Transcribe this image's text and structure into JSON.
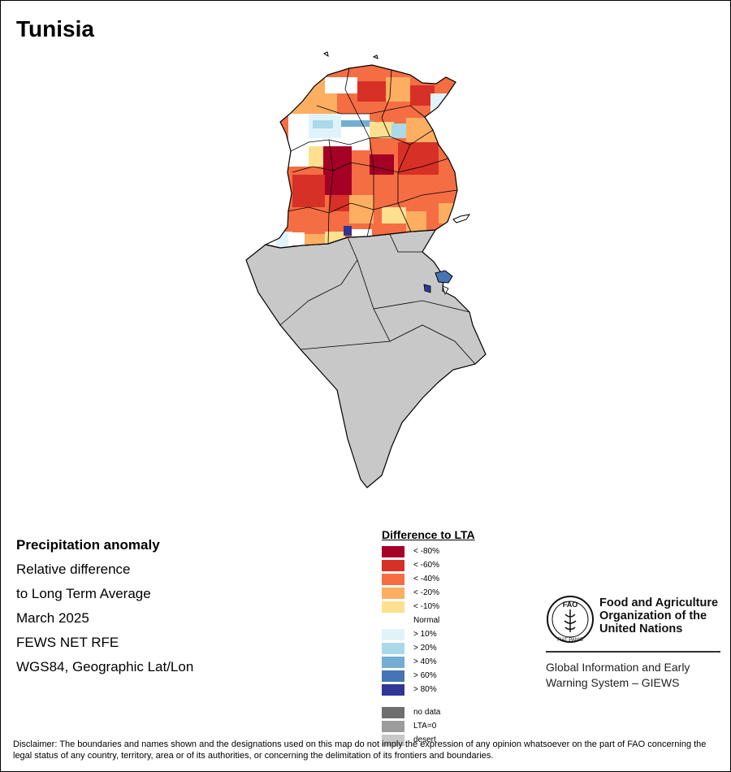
{
  "map": {
    "title": "Tunisia"
  },
  "info": {
    "lines": [
      "Precipitation anomaly",
      "Relative difference",
      "to Long Term Average",
      "March 2025",
      "FEWS NET RFE",
      "WGS84, Geographic Lat/Lon"
    ]
  },
  "legend": {
    "title": "Difference to LTA",
    "items": [
      {
        "label": "< -80%",
        "color": "#a50026"
      },
      {
        "label": "< -60%",
        "color": "#d73027"
      },
      {
        "label": "< -40%",
        "color": "#f46d43"
      },
      {
        "label": "< -20%",
        "color": "#fdae61"
      },
      {
        "label": "< -10%",
        "color": "#fee090"
      },
      {
        "label": "Normal",
        "color": "#ffffff"
      },
      {
        "label": "> 10%",
        "color": "#e0f3f8"
      },
      {
        "label": "> 20%",
        "color": "#abd9e9"
      },
      {
        "label": "> 40%",
        "color": "#74add1"
      },
      {
        "label": "> 60%",
        "color": "#4575b4"
      },
      {
        "label": "> 80%",
        "color": "#313695"
      }
    ],
    "extra": [
      {
        "label": "no data",
        "color": "#6e6e6e"
      },
      {
        "label": "LTA=0",
        "color": "#9c9c9c"
      },
      {
        "label": "desert",
        "color": "#c8c8c8"
      }
    ]
  },
  "fao": {
    "logo_text": "FAO",
    "logo_motto": "FIAT PANIS",
    "org_name": "Food and Agriculture Organization of the United Nations",
    "system_name": "Global Information and Early Warning System – GIEWS"
  },
  "disclaimer": "Disclaimer: The boundaries and names shown and the designations used on this map do not imply the expression of any opinion whatsoever on the part of FAO concerning the legal status of any country, territory, area or of its authorities, or concerning the delimitation of its frontiers and boundaries."
}
